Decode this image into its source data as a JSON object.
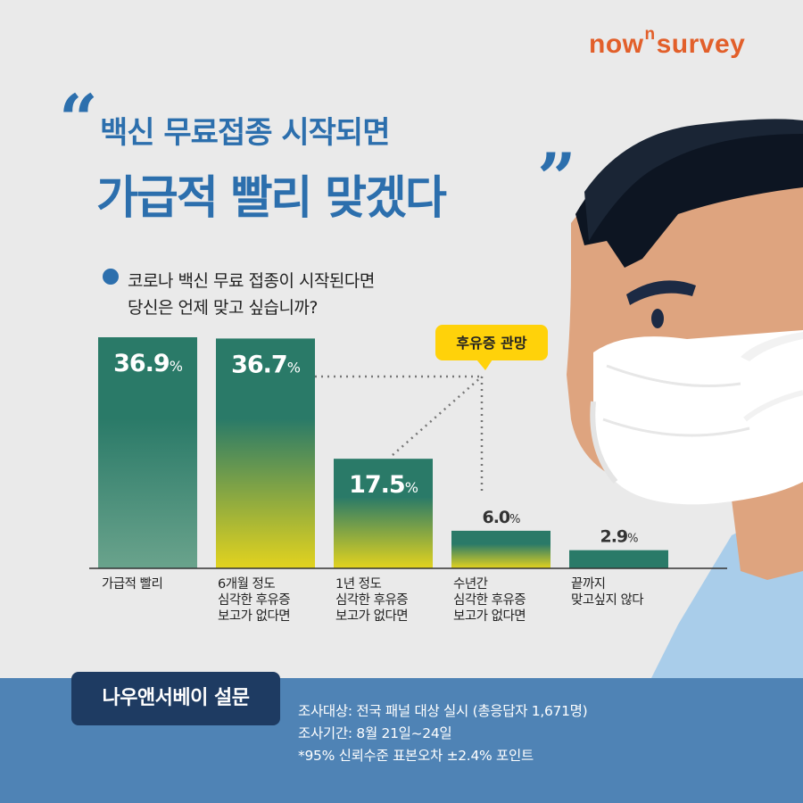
{
  "brand": {
    "part1": "now",
    "sup": "n",
    "part2": "survey"
  },
  "headline": {
    "line1": "백신 무료접종 시작되면",
    "line2": "가급적 빨리 맞겠다",
    "quote_open": "“",
    "quote_close": "”"
  },
  "question": {
    "line1": "코로나 백신 무료 접종이 시작된다면",
    "line2": "당신은 언제 맞고 싶습니까?"
  },
  "callout": "후유증 관망",
  "chart_data": {
    "type": "bar",
    "categories": [
      [
        "가급적 빨리"
      ],
      [
        "6개월 정도",
        "심각한 후유증",
        "보고가 없다면"
      ],
      [
        "1년 정도",
        "심각한 후유증",
        "보고가 없다면"
      ],
      [
        "수년간",
        "심각한 후유증",
        "보고가 없다면"
      ],
      [
        "끝까지",
        "맞고싶지 않다"
      ]
    ],
    "values": [
      36.9,
      36.7,
      17.5,
      6.0,
      2.9
    ],
    "value_labels": [
      "36.9",
      "36.7",
      "17.5",
      "6.0",
      "2.9"
    ],
    "unit": "%",
    "colors": {
      "bar_top": "#2a7a68",
      "bar_bottom_first": "#6aa38c",
      "bar_bottom_rest": "#e3d31e",
      "label_light": "#ffffff",
      "label_dark": "#333333"
    }
  },
  "footer": {
    "badge": "나우앤서베이 설문",
    "lines": [
      "조사대상: 전국 패널 대상 실시 (총응답자 1,671명)",
      "조사기간:  8월 21일~24일",
      "*95% 신뢰수준 표본오차 ±2.4% 포인트"
    ]
  },
  "colors": {
    "title": "#2c6fad",
    "brand": "#e25f2a",
    "footer_bg": "#4f83b5",
    "badge_bg": "#1e3b62",
    "callout_bg": "#ffd20a"
  }
}
